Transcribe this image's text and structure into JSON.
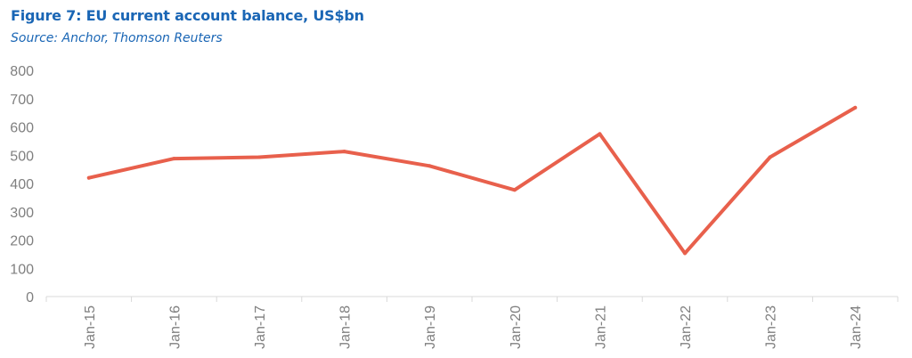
{
  "header": {
    "title": "Figure 7: EU current account balance, US$bn",
    "source": "Source: Anchor, Thomson Reuters"
  },
  "colors": {
    "title": "#1a66b5",
    "line": "#e8604c",
    "axis": "#d9d9d9",
    "tick_text": "#7f7f7f"
  },
  "chart_data": {
    "type": "line",
    "title": "Figure 7: EU current account balance, US$bn",
    "xlabel": "",
    "ylabel": "",
    "categories": [
      "Jan-15",
      "Jan-16",
      "Jan-17",
      "Jan-18",
      "Jan-19",
      "Jan-20",
      "Jan-21",
      "Jan-22",
      "Jan-23",
      "Jan-24"
    ],
    "series": [
      {
        "values": [
          420,
          488,
          493,
          513,
          462,
          377,
          575,
          153,
          493,
          668
        ]
      }
    ],
    "ylim": [
      0,
      800
    ],
    "yticks": [
      "0",
      "100",
      "200",
      "300",
      "400",
      "500",
      "600",
      "700",
      "800"
    ],
    "grid": false,
    "legend": "none"
  }
}
